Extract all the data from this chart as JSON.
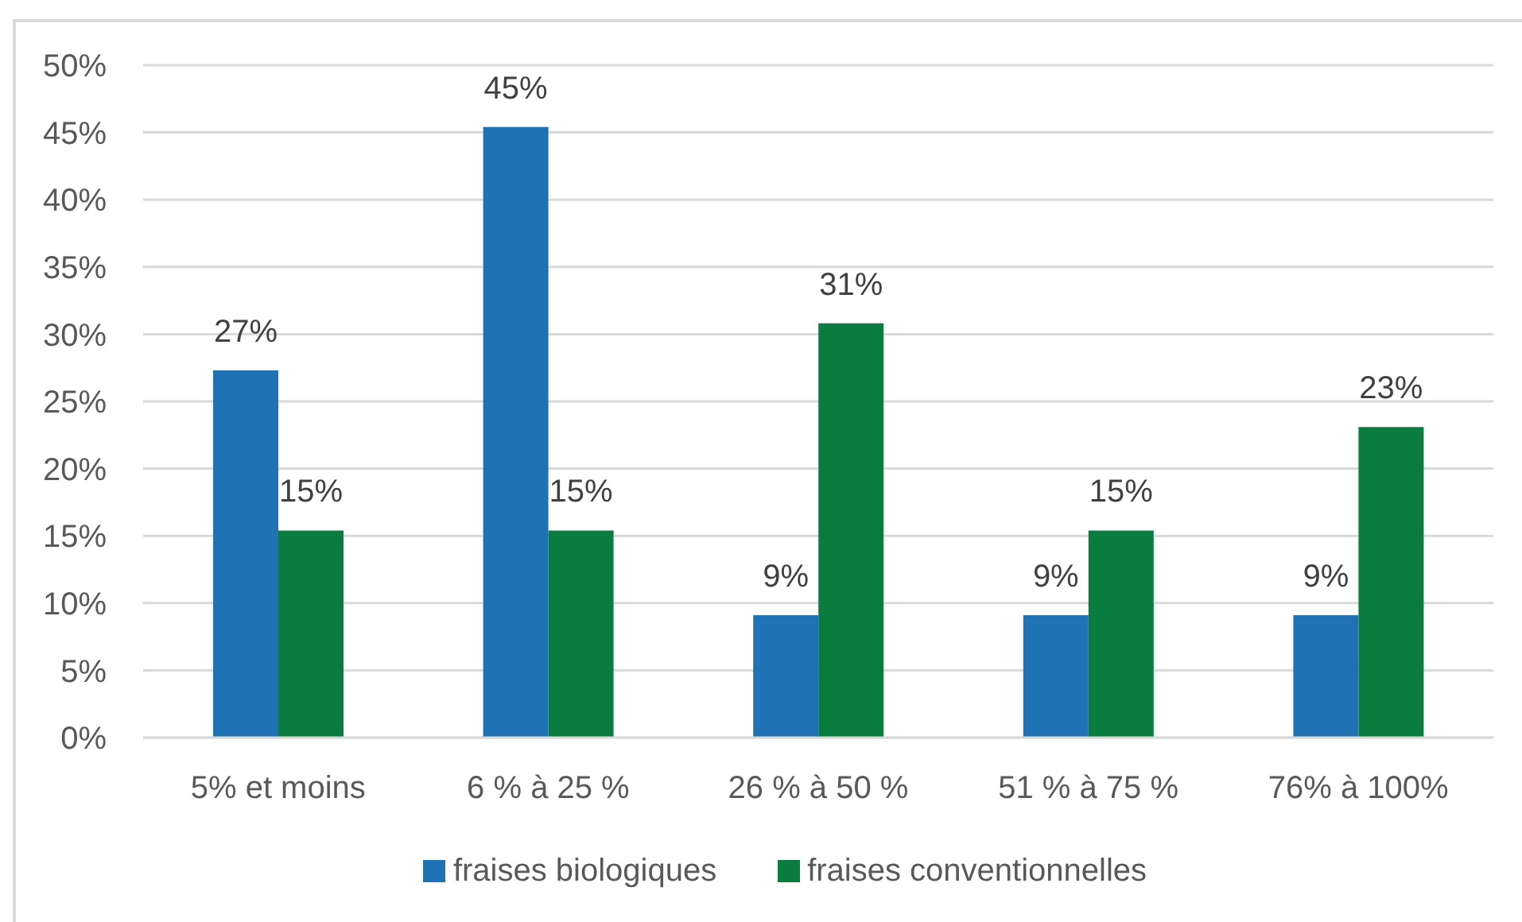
{
  "chart_data": {
    "type": "bar",
    "categories": [
      "5% et moins",
      "6 % à 25 %",
      "26 % à 50 %",
      "51 % à 75 %",
      "76% à 100%"
    ],
    "series": [
      {
        "name": "fraises biologiques",
        "color": "#1f73b5",
        "values": [
          27.3,
          45.4,
          9.1,
          9.1,
          9.1
        ],
        "value_labels": [
          "27%",
          "45%",
          "9%",
          "9%",
          "9%"
        ]
      },
      {
        "name": "fraises conventionnelles",
        "color": "#0b7c40",
        "values": [
          15.4,
          15.4,
          30.8,
          15.4,
          23.1
        ],
        "value_labels": [
          "15%",
          "15%",
          "31%",
          "15%",
          "23%"
        ]
      }
    ],
    "ylim": [
      0,
      50
    ],
    "yticks": [
      {
        "value": 0,
        "label": "0%"
      },
      {
        "value": 5,
        "label": "5%"
      },
      {
        "value": 10,
        "label": "10%"
      },
      {
        "value": 15,
        "label": "15%"
      },
      {
        "value": 20,
        "label": "20%"
      },
      {
        "value": 25,
        "label": "25%"
      },
      {
        "value": 30,
        "label": "30%"
      },
      {
        "value": 35,
        "label": "35%"
      },
      {
        "value": 40,
        "label": "40%"
      },
      {
        "value": 45,
        "label": "45%"
      },
      {
        "value": 50,
        "label": "50%"
      }
    ],
    "grid": "y",
    "legend": "bottom"
  }
}
